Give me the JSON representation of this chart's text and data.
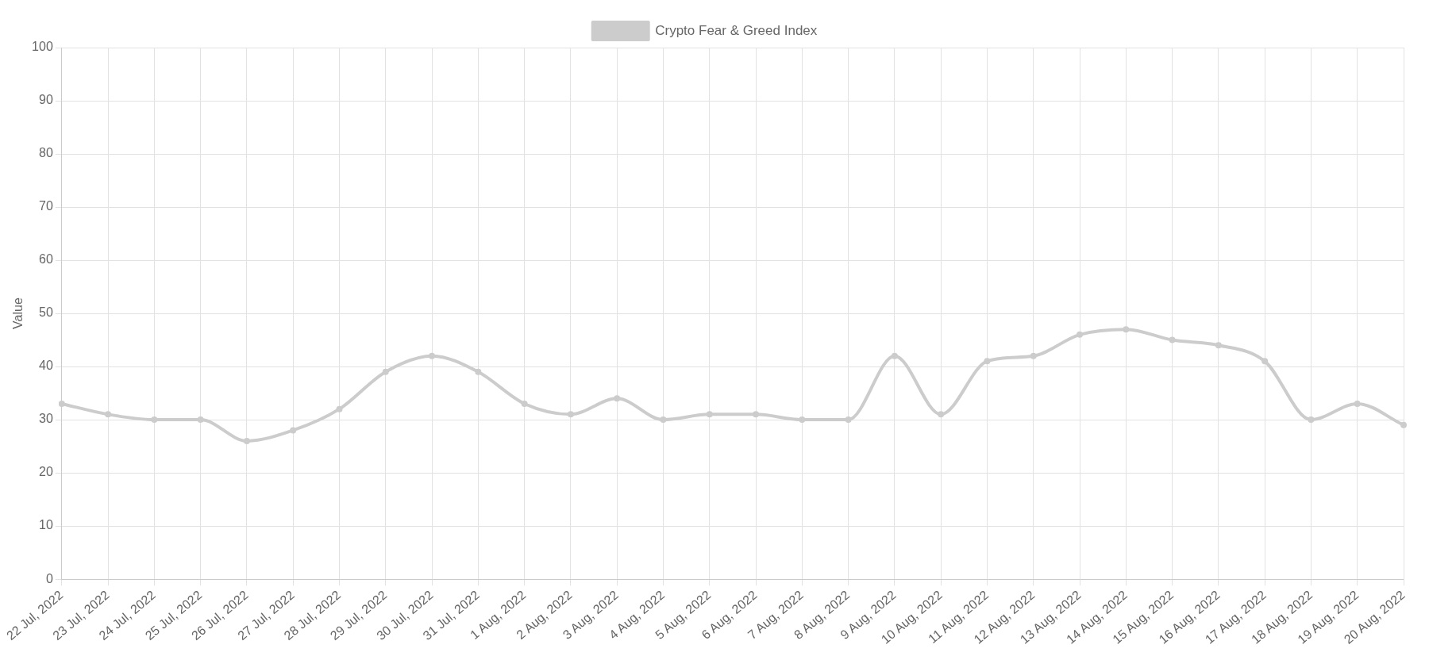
{
  "chart_data": {
    "type": "line",
    "ylabel": "Value",
    "categories": [
      "22 Jul, 2022",
      "23 Jul, 2022",
      "24 Jul, 2022",
      "25 Jul, 2022",
      "26 Jul, 2022",
      "27 Jul, 2022",
      "28 Jul, 2022",
      "29 Jul, 2022",
      "30 Jul, 2022",
      "31 Jul, 2022",
      "1 Aug, 2022",
      "2 Aug, 2022",
      "3 Aug, 2022",
      "4 Aug, 2022",
      "5 Aug, 2022",
      "6 Aug, 2022",
      "7 Aug, 2022",
      "8 Aug, 2022",
      "9 Aug, 2022",
      "10 Aug, 2022",
      "11 Aug, 2022",
      "12 Aug, 2022",
      "13 Aug, 2022",
      "14 Aug, 2022",
      "15 Aug, 2022",
      "16 Aug, 2022",
      "17 Aug, 2022",
      "18 Aug, 2022",
      "19 Aug, 2022",
      "20 Aug, 2022"
    ],
    "series": [
      {
        "name": "Crypto Fear & Greed Index",
        "color": "#cccccc",
        "values": [
          33,
          31,
          30,
          30,
          26,
          28,
          32,
          39,
          42,
          39,
          33,
          31,
          34,
          30,
          31,
          31,
          30,
          30,
          42,
          31,
          41,
          42,
          46,
          47,
          45,
          44,
          41,
          30,
          33,
          29
        ]
      }
    ],
    "ylim": [
      0,
      100
    ],
    "yticks": [
      0,
      10,
      20,
      30,
      40,
      50,
      60,
      70,
      80,
      90,
      100
    ],
    "grid": true,
    "legend": "top",
    "marker": "circle",
    "line_style": "solid"
  }
}
